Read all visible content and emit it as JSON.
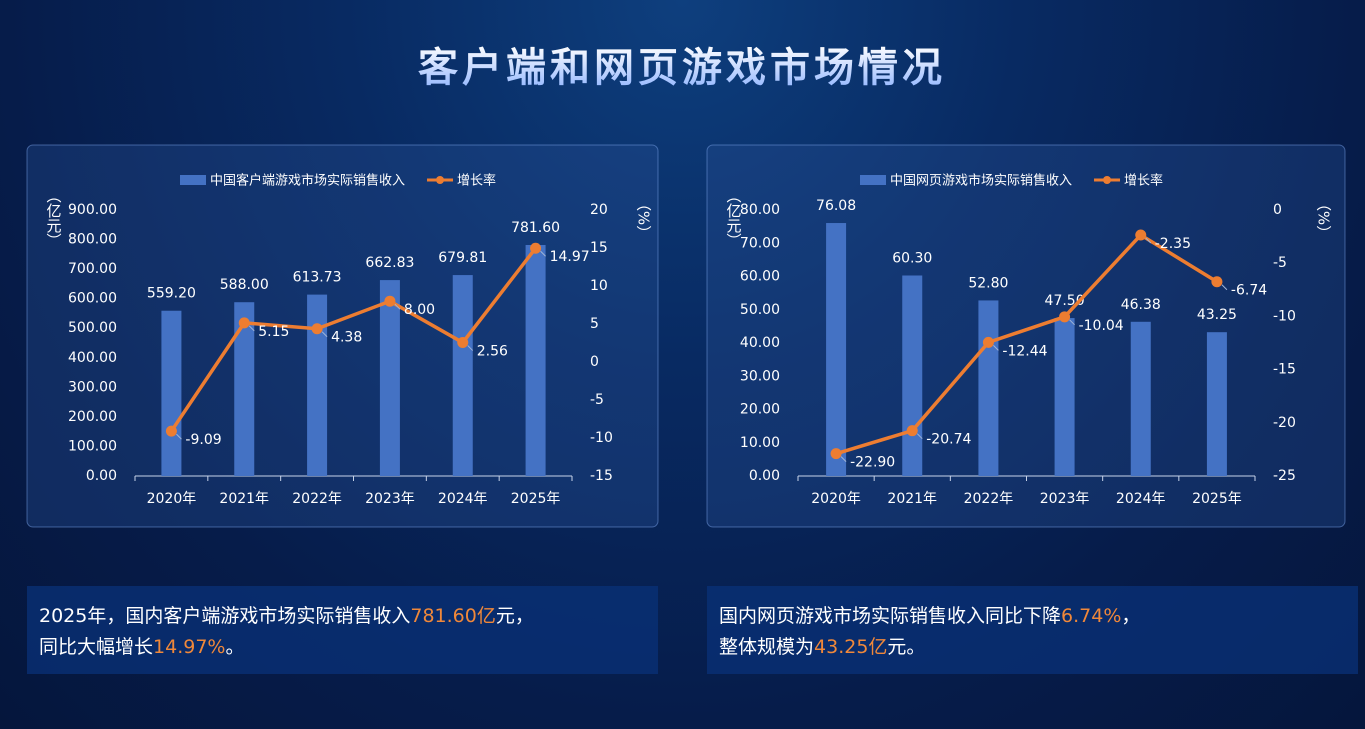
{
  "title": "客户端和网页游戏市场情况",
  "chart_data": [
    {
      "type": "combo",
      "categories": [
        "2020年",
        "2021年",
        "2022年",
        "2023年",
        "2024年",
        "2025年"
      ],
      "y_label": "（亿元）",
      "y2_label": "（%）",
      "ylim": [
        0,
        900
      ],
      "yticks": [
        {
          "value": 0,
          "label": "0.00"
        },
        {
          "value": 100,
          "label": "100.00"
        },
        {
          "value": 200,
          "label": "200.00"
        },
        {
          "value": 300,
          "label": "300.00"
        },
        {
          "value": 400,
          "label": "400.00"
        },
        {
          "value": 500,
          "label": "500.00"
        },
        {
          "value": 600,
          "label": "600.00"
        },
        {
          "value": 700,
          "label": "700.00"
        },
        {
          "value": 800,
          "label": "800.00"
        },
        {
          "value": 900,
          "label": "900.00"
        }
      ],
      "y2lim": [
        -15,
        20
      ],
      "y2ticks": [
        -15,
        -10,
        -5,
        0,
        5,
        10,
        15,
        20
      ],
      "series": [
        {
          "name": "中国客户端游戏市场实际销售收入",
          "type": "bar",
          "color": "#4472c4",
          "values": [
            559.2,
            588,
            613.73,
            662.83,
            679.81,
            781.6
          ],
          "value_labels": [
            "559.20",
            "588.00",
            "613.73",
            "662.83",
            "679.81",
            "781.60"
          ]
        },
        {
          "name": "增长率",
          "type": "line",
          "axis": "y2",
          "color": "#ed7d31",
          "values": [
            -9.09,
            5.15,
            4.38,
            8,
            2.56,
            14.97
          ],
          "value_labels": [
            "-9.09",
            "5.15",
            "4.38",
            "8.00",
            "2.56",
            "14.97"
          ]
        }
      ]
    },
    {
      "type": "combo",
      "categories": [
        "2020年",
        "2021年",
        "2022年",
        "2023年",
        "2024年",
        "2025年"
      ],
      "y_label": "（亿元）",
      "y2_label": "（%）",
      "ylim": [
        0,
        80
      ],
      "yticks": [
        {
          "value": 0,
          "label": "0.00"
        },
        {
          "value": 10,
          "label": "10.00"
        },
        {
          "value": 20,
          "label": "20.00"
        },
        {
          "value": 30,
          "label": "30.00"
        },
        {
          "value": 40,
          "label": "40.00"
        },
        {
          "value": 50,
          "label": "50.00"
        },
        {
          "value": 60,
          "label": "60.00"
        },
        {
          "value": 70,
          "label": "70.00"
        },
        {
          "value": 80,
          "label": "80.00"
        }
      ],
      "y2lim": [
        -25,
        0
      ],
      "y2ticks": [
        -25,
        -20,
        -15,
        -10,
        -5,
        0
      ],
      "series": [
        {
          "name": "中国网页游戏市场实际销售收入",
          "type": "bar",
          "color": "#4472c4",
          "values": [
            76.08,
            60.3,
            52.8,
            47.5,
            46.38,
            43.25
          ],
          "value_labels": [
            "76.08",
            "60.30",
            "52.80",
            "47.50",
            "46.38",
            "43.25"
          ]
        },
        {
          "name": "增长率",
          "type": "line",
          "axis": "y2",
          "color": "#ed7d31",
          "values": [
            -22.9,
            -20.74,
            -12.44,
            -10.04,
            -2.35,
            -6.74
          ],
          "value_labels": [
            "-22.90",
            "-20.74",
            "-12.44",
            "-10.04",
            "-2.35",
            "-6.74"
          ]
        }
      ]
    }
  ],
  "captions": [
    {
      "lines": [
        [
          {
            "text": "2025年，国内客户端游戏市场实际销售收入"
          },
          {
            "text": "781.60亿",
            "color": "#f0883a"
          },
          {
            "text": "元，"
          }
        ],
        [
          {
            "text": "同比大幅增长"
          },
          {
            "text": "14.97%",
            "color": "#f0883a"
          },
          {
            "text": "。"
          }
        ]
      ]
    },
    {
      "lines": [
        [
          {
            "text": "国内网页游戏市场实际销售收入同比下降"
          },
          {
            "text": "6.74%",
            "color": "#f0883a"
          },
          {
            "text": "，"
          }
        ],
        [
          {
            "text": "整体规模为"
          },
          {
            "text": "43.25亿",
            "color": "#f0883a"
          },
          {
            "text": "元。"
          }
        ]
      ]
    }
  ]
}
